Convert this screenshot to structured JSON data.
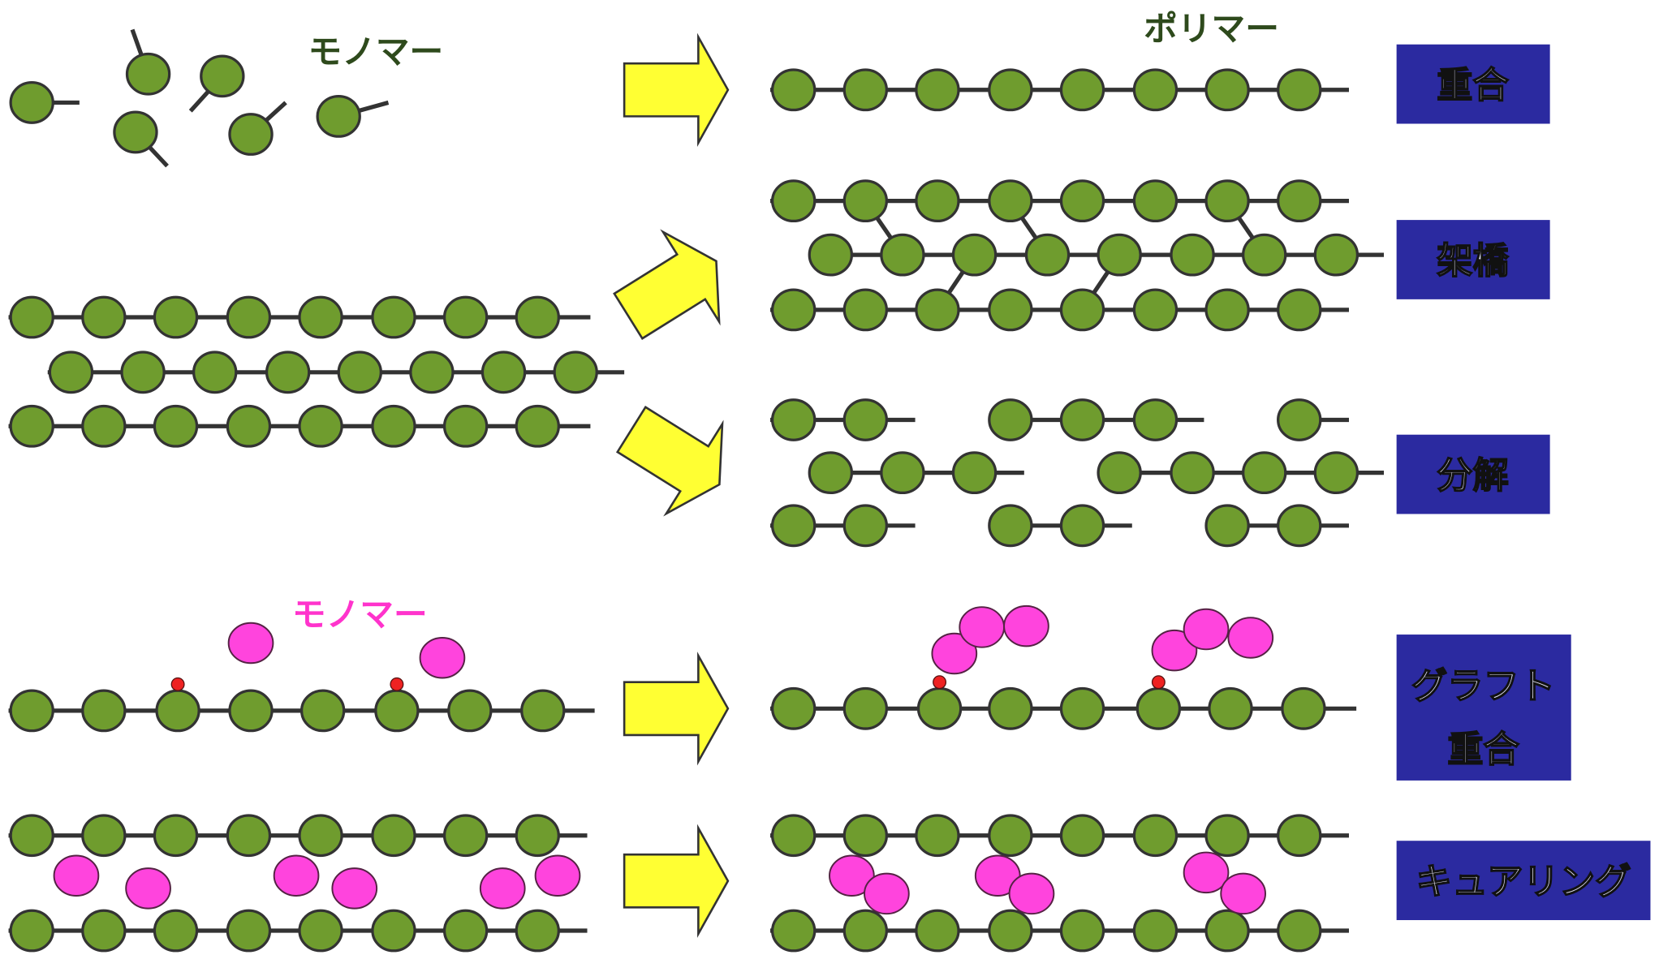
{
  "monomer_label": "モノマー",
  "polymer_label": "ポリマー",
  "graft_monomer_label": "モノマー",
  "processes": [
    {
      "label": "重合"
    },
    {
      "label": "架橋"
    },
    {
      "label": "分解"
    },
    {
      "label": [
        "グラフト",
        "重合"
      ]
    },
    {
      "label": "キュアリング"
    }
  ]
}
